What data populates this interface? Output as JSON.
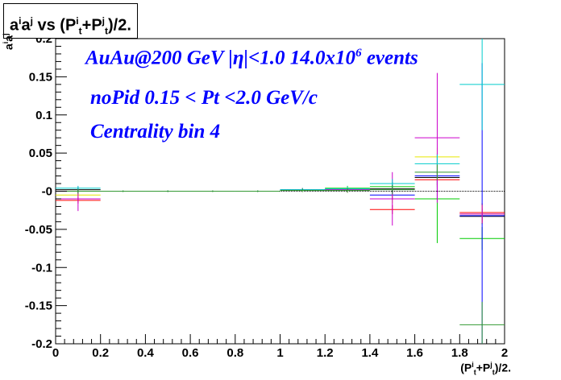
{
  "chart_data": {
    "type": "scatter",
    "title": {
      "pre": "a",
      "sup1": "i",
      "mid1": "a",
      "sup2": "j",
      "mid2": " vs (P",
      "sup3": "i",
      "sub3": "t",
      "mid3": "+P",
      "sup4": "j",
      "sub4": "t",
      "post": ")/2."
    },
    "xlabel": {
      "pre": "(P",
      "sup1": "i",
      "sub1": "t",
      "mid": "+P",
      "sup2": "j",
      "sub2": "t",
      "post": ")/2."
    },
    "ylabel": {
      "pre": "a",
      "sup1": "i",
      "mid": "a",
      "sup2": "j"
    },
    "xlim": [
      0,
      2
    ],
    "ylim": [
      -0.2,
      0.2
    ],
    "x_ticks": [
      "0",
      "0.2",
      "0.4",
      "0.6",
      "0.8",
      "1",
      "1.2",
      "1.4",
      "1.6",
      "1.8",
      "2"
    ],
    "y_ticks": [
      "-0.2",
      "-0.15",
      "-0.1",
      "-0.05",
      "-0",
      "0.05",
      "0.1",
      "0.15",
      "0.2"
    ],
    "annotations": {
      "line1_main": "AuAu@200 GeV |η|<1.0 14.0x10",
      "line1_sup": "6",
      "line1_tail": " events",
      "line2": "noPid 0.15 < Pt <2.0 GeV/c",
      "line3": "Centrality bin 4"
    },
    "series": [
      {
        "color": "#000000",
        "points": [
          {
            "x": 0.1,
            "y": 0.002,
            "err": 0.003
          },
          {
            "x": 0.3,
            "y": 0.0,
            "err": 0.001
          },
          {
            "x": 0.5,
            "y": 0.0,
            "err": 0.001
          },
          {
            "x": 0.7,
            "y": 0.0,
            "err": 0.001
          },
          {
            "x": 0.9,
            "y": 0.0,
            "err": 0.001
          },
          {
            "x": 1.1,
            "y": 0.002,
            "err": 0.002
          },
          {
            "x": 1.3,
            "y": 0.002,
            "err": 0.003
          },
          {
            "x": 1.5,
            "y": 0.003,
            "err": 0.005
          },
          {
            "x": 1.7,
            "y": 0.018,
            "err": 0.01
          },
          {
            "x": 1.9,
            "y": -0.033,
            "err": 0.01
          }
        ]
      },
      {
        "color": "#ff0000",
        "points": [
          {
            "x": 0.1,
            "y": -0.012,
            "err": 0.004
          },
          {
            "x": 0.3,
            "y": 0.0,
            "err": 0.001
          },
          {
            "x": 0.5,
            "y": 0.0,
            "err": 0.001
          },
          {
            "x": 0.7,
            "y": 0.0,
            "err": 0.001
          },
          {
            "x": 0.9,
            "y": 0.0,
            "err": 0.001
          },
          {
            "x": 1.1,
            "y": 0.002,
            "err": 0.002
          },
          {
            "x": 1.3,
            "y": 0.001,
            "err": 0.003
          },
          {
            "x": 1.5,
            "y": -0.024,
            "err": 0.006
          },
          {
            "x": 1.7,
            "y": 0.015,
            "err": 0.01
          },
          {
            "x": 1.9,
            "y": -0.028,
            "err": 0.012
          }
        ]
      },
      {
        "color": "#00cc00",
        "points": [
          {
            "x": 0.1,
            "y": 0.0,
            "err": 0.004
          },
          {
            "x": 0.3,
            "y": 0.0,
            "err": 0.001
          },
          {
            "x": 0.5,
            "y": 0.0,
            "err": 0.001
          },
          {
            "x": 0.7,
            "y": 0.0,
            "err": 0.001
          },
          {
            "x": 0.9,
            "y": 0.0,
            "err": 0.001
          },
          {
            "x": 1.1,
            "y": 0.002,
            "err": 0.002
          },
          {
            "x": 1.3,
            "y": 0.004,
            "err": 0.003
          },
          {
            "x": 1.5,
            "y": 0.006,
            "err": 0.006
          },
          {
            "x": 1.7,
            "y": -0.01,
            "err": 0.058
          },
          {
            "x": 1.9,
            "y": -0.062,
            "err": 0.015
          }
        ]
      },
      {
        "color": "#0000ff",
        "points": [
          {
            "x": 0.1,
            "y": 0.0,
            "err": 0.003
          },
          {
            "x": 0.3,
            "y": 0.0,
            "err": 0.001
          },
          {
            "x": 0.5,
            "y": 0.0,
            "err": 0.001
          },
          {
            "x": 0.7,
            "y": 0.0,
            "err": 0.001
          },
          {
            "x": 0.9,
            "y": 0.0,
            "err": 0.001
          },
          {
            "x": 1.1,
            "y": 0.001,
            "err": 0.002
          },
          {
            "x": 1.3,
            "y": 0.002,
            "err": 0.003
          },
          {
            "x": 1.5,
            "y": -0.005,
            "err": 0.006
          },
          {
            "x": 1.7,
            "y": 0.02,
            "err": 0.03
          },
          {
            "x": 1.9,
            "y": -0.032,
            "err": 0.2
          }
        ]
      },
      {
        "color": "#e6e600",
        "points": [
          {
            "x": 0.1,
            "y": -0.005,
            "err": 0.003
          },
          {
            "x": 0.3,
            "y": 0.0,
            "err": 0.001
          },
          {
            "x": 0.5,
            "y": 0.0,
            "err": 0.001
          },
          {
            "x": 0.7,
            "y": 0.0,
            "err": 0.001
          },
          {
            "x": 0.9,
            "y": 0.0,
            "err": 0.001
          },
          {
            "x": 1.1,
            "y": 0.001,
            "err": 0.002
          },
          {
            "x": 1.3,
            "y": 0.002,
            "err": 0.003
          },
          {
            "x": 1.5,
            "y": -0.01,
            "err": 0.006
          },
          {
            "x": 1.7,
            "y": 0.045,
            "err": 0.012
          },
          {
            "x": 1.9,
            "y": -0.03,
            "err": 0.012
          }
        ]
      },
      {
        "color": "#cc00cc",
        "points": [
          {
            "x": 0.1,
            "y": -0.01,
            "err": 0.016
          },
          {
            "x": 0.3,
            "y": 0.0,
            "err": 0.001
          },
          {
            "x": 0.5,
            "y": 0.0,
            "err": 0.001
          },
          {
            "x": 0.7,
            "y": 0.0,
            "err": 0.001
          },
          {
            "x": 0.9,
            "y": 0.0,
            "err": 0.001
          },
          {
            "x": 1.1,
            "y": 0.002,
            "err": 0.002
          },
          {
            "x": 1.3,
            "y": 0.002,
            "err": 0.003
          },
          {
            "x": 1.5,
            "y": -0.01,
            "err": 0.035
          },
          {
            "x": 1.7,
            "y": 0.07,
            "err": 0.085
          },
          {
            "x": 1.9,
            "y": -0.03,
            "err": 0.012
          }
        ]
      },
      {
        "color": "#00cccc",
        "points": [
          {
            "x": 0.1,
            "y": 0.004,
            "err": 0.003
          },
          {
            "x": 0.3,
            "y": 0.0,
            "err": 0.001
          },
          {
            "x": 0.5,
            "y": 0.0,
            "err": 0.001
          },
          {
            "x": 0.7,
            "y": 0.0,
            "err": 0.001
          },
          {
            "x": 0.9,
            "y": 0.0,
            "err": 0.001
          },
          {
            "x": 1.1,
            "y": 0.002,
            "err": 0.002
          },
          {
            "x": 1.3,
            "y": 0.003,
            "err": 0.003
          },
          {
            "x": 1.5,
            "y": 0.01,
            "err": 0.006
          },
          {
            "x": 1.7,
            "y": 0.036,
            "err": 0.012
          },
          {
            "x": 1.9,
            "y": 0.14,
            "err": 0.06
          }
        ]
      },
      {
        "color": "#339933",
        "points": [
          {
            "x": 0.1,
            "y": 0.0,
            "err": 0.003
          },
          {
            "x": 0.3,
            "y": 0.0,
            "err": 0.001
          },
          {
            "x": 0.5,
            "y": 0.0,
            "err": 0.001
          },
          {
            "x": 0.7,
            "y": 0.0,
            "err": 0.001
          },
          {
            "x": 0.9,
            "y": 0.0,
            "err": 0.001
          },
          {
            "x": 1.1,
            "y": 0.001,
            "err": 0.002
          },
          {
            "x": 1.3,
            "y": 0.001,
            "err": 0.003
          },
          {
            "x": 1.5,
            "y": 0.002,
            "err": 0.006
          },
          {
            "x": 1.7,
            "y": 0.025,
            "err": 0.01
          },
          {
            "x": 1.9,
            "y": -0.175,
            "err": 0.03
          }
        ]
      }
    ]
  }
}
